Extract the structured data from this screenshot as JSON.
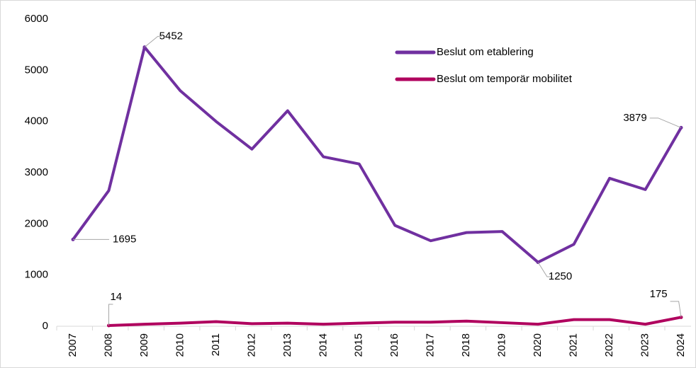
{
  "chart_data": {
    "type": "line",
    "x": [
      "2007",
      "2008",
      "2009",
      "2010",
      "2011",
      "2012",
      "2013",
      "2014",
      "2015",
      "2016",
      "2017",
      "2018",
      "2019",
      "2020",
      "2021",
      "2022",
      "2023",
      "2024"
    ],
    "series": [
      {
        "name": "Beslut om etablering",
        "color": "#7030a0",
        "values": [
          1695,
          2650,
          5452,
          4600,
          4000,
          3460,
          4210,
          3310,
          3170,
          1970,
          1670,
          1830,
          1850,
          1250,
          1600,
          2890,
          2670,
          3879
        ],
        "data_labels": [
          0,
          2,
          13,
          17
        ]
      },
      {
        "name": "Beslut om temporär mobilitet",
        "color": "#b0005e",
        "values": [
          null,
          14,
          40,
          60,
          90,
          50,
          60,
          40,
          60,
          80,
          80,
          100,
          70,
          40,
          130,
          130,
          40,
          175
        ],
        "data_labels": [
          1,
          17
        ]
      }
    ],
    "ylim": [
      0,
      6000
    ],
    "yticks": [
      0,
      1000,
      2000,
      3000,
      4000,
      5000,
      6000
    ],
    "grid": false,
    "legend": "upper right"
  }
}
